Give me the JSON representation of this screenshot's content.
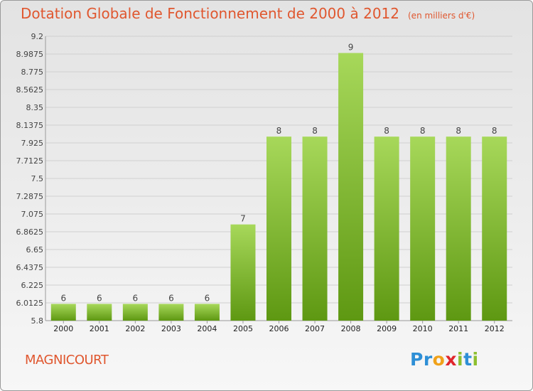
{
  "header": {
    "title": "Dotation Globale de Fonctionnement de 2000 à 2012",
    "subtitle": "(en milliers d'€)"
  },
  "footer": {
    "town": "MAGNICOURT",
    "brand_letters": [
      {
        "ch": "P",
        "color": "#2e8fd6"
      },
      {
        "ch": "r",
        "color": "#2e8fd6"
      },
      {
        "ch": "o",
        "color": "#f0a21a"
      },
      {
        "ch": "x",
        "color": "#e0262d"
      },
      {
        "ch": "i",
        "color": "#8dbf2f"
      },
      {
        "ch": "t",
        "color": "#2e8fd6"
      },
      {
        "ch": "i",
        "color": "#8dbf2f"
      }
    ]
  },
  "colors": {
    "bar_top": "#a7d85a",
    "bar_bottom": "#5e9812",
    "grid": "#d0d0d0",
    "title": "#e0572f"
  },
  "chart_data": {
    "type": "bar",
    "categories": [
      "2000",
      "2001",
      "2002",
      "2003",
      "2004",
      "2005",
      "2006",
      "2007",
      "2008",
      "2009",
      "2010",
      "2011",
      "2012"
    ],
    "values": [
      6,
      6,
      6,
      6,
      6,
      7,
      8,
      8,
      9,
      8,
      8,
      8,
      8
    ],
    "bar_heights_value": [
      6.0,
      6.0,
      6.0,
      6.0,
      6.0,
      6.95,
      8.0,
      8.0,
      9.0,
      8.0,
      8.0,
      8.0,
      8.0
    ],
    "data_labels": [
      "6",
      "6",
      "6",
      "6",
      "6",
      "7",
      "8",
      "8",
      "9",
      "8",
      "8",
      "8",
      "8"
    ],
    "yticks": [
      "5.8",
      "6.0125",
      "6.225",
      "6.4375",
      "6.65",
      "6.8625",
      "7.075",
      "7.2875",
      "7.5",
      "7.7125",
      "7.925",
      "8.1375",
      "8.35",
      "8.5625",
      "8.775",
      "8.9875",
      "9.2"
    ],
    "ylim": [
      5.8,
      9.2
    ],
    "grid": true,
    "title": "Dotation Globale de Fonctionnement de 2000 à 2012",
    "xlabel": "",
    "ylabel": ""
  }
}
